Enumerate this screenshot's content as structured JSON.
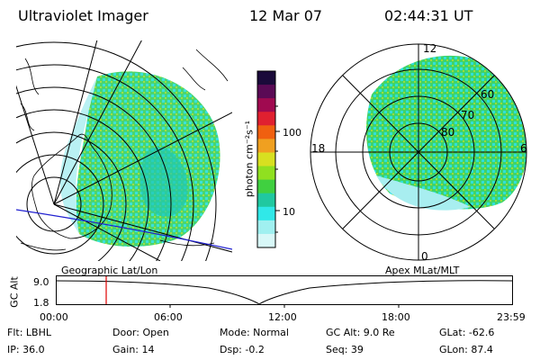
{
  "header": {
    "instrument": "Ultraviolet Imager",
    "date": "12 Mar 07",
    "time": "02:44:31 UT"
  },
  "colorbar": {
    "unit_label": "photon cm⁻²s⁻¹",
    "ticks": [
      "100",
      "10"
    ],
    "colors": [
      "#1a0a3a",
      "#5a0a55",
      "#a00a50",
      "#e02030",
      "#f06010",
      "#f0a020",
      "#d8e020",
      "#90e020",
      "#40d040",
      "#20c8a0",
      "#30e8e8",
      "#a0f0f0",
      "#d8f8f8"
    ]
  },
  "left_map": {
    "label": "Geographic Lat/Lon"
  },
  "right_map": {
    "label": "Apex MLat/MLT",
    "mlt_labels": {
      "top": "12",
      "left": "18",
      "right": "6",
      "bottom": "0"
    },
    "mlat_labels": [
      "60",
      "70",
      "80"
    ]
  },
  "altitude_plot": {
    "ylabel": "GC Alt",
    "ymax": "9.0",
    "ymin": "1.8",
    "x_ticks": [
      "00:00",
      "06:00",
      "12:00",
      "18:00",
      "23:59"
    ],
    "marker_time": "02:44"
  },
  "info": {
    "flt": "Flt: LBHL",
    "ip": "IP: 36.0",
    "door": "Door: Open",
    "gain": "Gain: 14",
    "mode": "Mode: Normal",
    "dsp": "Dsp:    -0.2",
    "gc_alt": "GC Alt: 9.0 Re",
    "seq": "Seq: 39",
    "glat": "GLat: -62.6",
    "glon": "GLon:  87.4"
  }
}
